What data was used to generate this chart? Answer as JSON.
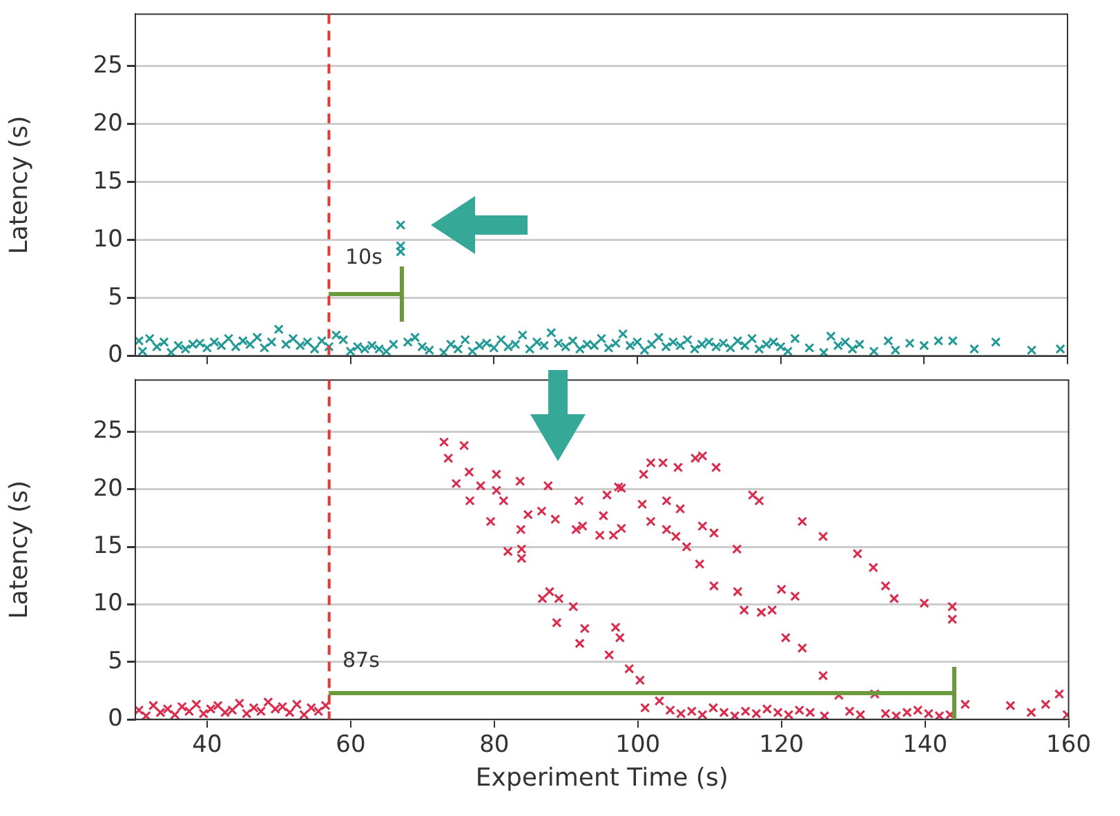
{
  "chart_data": [
    {
      "type": "scatter",
      "ylabel": "Latency (s)",
      "xlim": [
        30,
        160
      ],
      "xticks": [
        40,
        60,
        80,
        100,
        120,
        140,
        160
      ],
      "ylim": [
        0,
        29.5
      ],
      "yticks": [
        0,
        5,
        10,
        15,
        20,
        25
      ],
      "tick_labels": "y",
      "grid": "y",
      "legend": false,
      "marker": "cross",
      "series": [
        {
          "color": "#1f9a96",
          "x": [
            30.5,
            31,
            32,
            33,
            34,
            35,
            36,
            37,
            38,
            39,
            40,
            41,
            42,
            43,
            44,
            45,
            46,
            47,
            48,
            49,
            50,
            51,
            52,
            53,
            54,
            55,
            56,
            57,
            58,
            59,
            60,
            61,
            62,
            63,
            64,
            65,
            66,
            67,
            67,
            67,
            68,
            69,
            70,
            71,
            73,
            74,
            75,
            76,
            77,
            78,
            79,
            80,
            81,
            82,
            83,
            84,
            85,
            86,
            87,
            88,
            89,
            90,
            91,
            92,
            93,
            94,
            95,
            96,
            97,
            98,
            99,
            100,
            101,
            102,
            103,
            104,
            105,
            106,
            107,
            108,
            109,
            110,
            111,
            112,
            113,
            114,
            115,
            116,
            117,
            118,
            119,
            120,
            121,
            122,
            124,
            126,
            127,
            128,
            129,
            130,
            131,
            133,
            135,
            136,
            138,
            140,
            142,
            144,
            147,
            150,
            155,
            159
          ],
          "values": [
            1.3,
            0.4,
            1.5,
            0.8,
            1.2,
            0.3,
            0.9,
            0.6,
            1.0,
            1.1,
            0.7,
            1.2,
            0.9,
            1.5,
            0.8,
            1.3,
            1.0,
            1.6,
            0.7,
            1.2,
            2.3,
            1.0,
            1.5,
            0.9,
            1.2,
            0.6,
            1.3,
            0.8,
            1.8,
            1.4,
            0.4,
            0.8,
            0.6,
            0.9,
            0.6,
            0.4,
            1.0,
            9.0,
            9.5,
            11.3,
            1.2,
            1.6,
            0.8,
            0.5,
            0.3,
            1.0,
            0.6,
            1.4,
            0.4,
            0.9,
            1.1,
            0.7,
            1.4,
            0.8,
            1.0,
            1.8,
            0.6,
            1.2,
            0.9,
            2.0,
            1.1,
            0.8,
            1.3,
            0.6,
            1.0,
            0.9,
            1.5,
            0.7,
            1.1,
            1.9,
            0.9,
            1.2,
            0.5,
            1.0,
            1.6,
            0.8,
            1.2,
            0.9,
            1.4,
            0.6,
            1.0,
            1.2,
            0.8,
            1.1,
            0.7,
            1.3,
            0.9,
            1.5,
            0.6,
            1.0,
            1.2,
            0.8,
            0.4,
            1.5,
            0.7,
            0.3,
            1.7,
            0.9,
            1.2,
            0.6,
            1.0,
            0.4,
            1.3,
            0.5,
            1.1,
            0.9,
            1.3,
            1.3,
            0.6,
            1.2,
            0.5,
            0.6
          ]
        }
      ],
      "ref_lines": [
        {
          "axis": "x",
          "value": 57,
          "color": "#ee3333",
          "line_style": "dashed"
        }
      ],
      "annotations": [
        "10s"
      ]
    },
    {
      "type": "scatter",
      "xlabel": "Experiment Time (s)",
      "ylabel": "Latency (s)",
      "xlim": [
        30,
        160
      ],
      "xticks": [
        40,
        60,
        80,
        100,
        120,
        140,
        160
      ],
      "ylim": [
        0,
        29.5
      ],
      "yticks": [
        0,
        5,
        10,
        15,
        20,
        25
      ],
      "grid": "y",
      "legend": false,
      "marker": "cross",
      "series": [
        {
          "color": "#e0284a",
          "x": [
            30.5,
            31.5,
            32.5,
            33.5,
            34.5,
            35.5,
            36.5,
            37.5,
            38.5,
            39.5,
            40.5,
            41.5,
            42.5,
            43.5,
            44.5,
            45.5,
            46.5,
            47.5,
            48.5,
            49.5,
            50.5,
            51.5,
            52.5,
            53.5,
            54.5,
            55.5,
            56.5,
            73,
            75.8,
            73.6,
            76.5,
            74.7,
            78.1,
            76.6,
            80.3,
            80.3,
            81.3,
            83.6,
            87.5,
            79.5,
            83.7,
            84.7,
            86.6,
            88.5,
            91.8,
            91.4,
            92.3,
            94.7,
            96.6,
            95.2,
            95.7,
            97.7,
            81.9,
            83.8,
            83.8,
            86.7,
            87.7,
            89,
            91,
            88.7,
            92.6,
            91.9,
            96,
            96.9,
            101.8,
            103.5,
            100.8,
            105.6,
            108,
            109,
            110.9,
            97.3,
            100.6,
            104,
            105.9,
            116,
            116.9,
            97.7,
            101.8,
            104,
            105.3,
            106.8,
            109,
            110.6,
            108.6,
            113.8,
            122.9,
            125.8,
            130.6,
            132.8,
            134.5,
            135.7,
            139.9,
            143.8,
            143.8,
            110.6,
            113.9,
            114.8,
            117.2,
            118.7,
            120,
            121.9,
            120.6,
            122.9,
            97.5,
            98.8,
            100.3,
            125.8,
            101,
            103,
            104.5,
            106,
            107.5,
            109,
            110.5,
            112,
            113.5,
            115,
            116.5,
            118,
            119.5,
            121,
            122.5,
            124,
            126,
            128,
            129.5,
            131,
            133,
            134.5,
            136,
            137.5,
            139,
            140.5,
            142,
            143.5,
            145.6,
            151.9,
            154.8,
            156.8,
            158.7,
            159.8
          ],
          "values": [
            0.8,
            0.3,
            1.2,
            0.6,
            0.9,
            0.4,
            1.1,
            0.7,
            1.3,
            0.5,
            0.9,
            1.2,
            0.6,
            0.8,
            1.4,
            0.5,
            1.0,
            0.7,
            1.5,
            0.9,
            1.1,
            0.6,
            1.3,
            0.4,
            1.0,
            0.7,
            1.2,
            24.1,
            23.8,
            22.7,
            21.5,
            20.5,
            20.3,
            19,
            21.3,
            19.9,
            19,
            20.7,
            20.3,
            17.2,
            16.5,
            17.8,
            18.1,
            17.4,
            19,
            16.5,
            16.8,
            16,
            16,
            17.7,
            19.5,
            20.1,
            14.6,
            14.8,
            14,
            10.5,
            11.1,
            10.5,
            9.8,
            8.4,
            7.9,
            6.6,
            5.6,
            8,
            22.3,
            22.3,
            21.3,
            21.9,
            22.7,
            22.9,
            21.9,
            20.2,
            18.7,
            19,
            18.3,
            19.5,
            19,
            16.6,
            17.2,
            16.5,
            15.9,
            15,
            16.8,
            16.2,
            13.5,
            14.8,
            17.2,
            15.9,
            14.4,
            13.2,
            11.6,
            10.5,
            10.1,
            9.8,
            8.7,
            11.6,
            11.1,
            9.5,
            9.3,
            9.5,
            11.3,
            10.7,
            7.1,
            6.2,
            7.1,
            4.4,
            3.4,
            3.8,
            1.0,
            1.6,
            0.8,
            0.5,
            0.7,
            0.4,
            1.0,
            0.6,
            0.3,
            0.7,
            0.5,
            0.9,
            0.6,
            0.4,
            0.8,
            0.6,
            0.3,
            2.1,
            0.7,
            0.4,
            2.2,
            0.5,
            0.3,
            0.6,
            0.8,
            0.5,
            0.3,
            0.4,
            1.3,
            1.2,
            0.6,
            1.3,
            2.2,
            0.4
          ]
        }
      ],
      "ref_lines": [
        {
          "axis": "x",
          "value": 57,
          "color": "#ee3333",
          "line_style": "dashed"
        }
      ],
      "annotations": [
        "87s"
      ]
    }
  ]
}
